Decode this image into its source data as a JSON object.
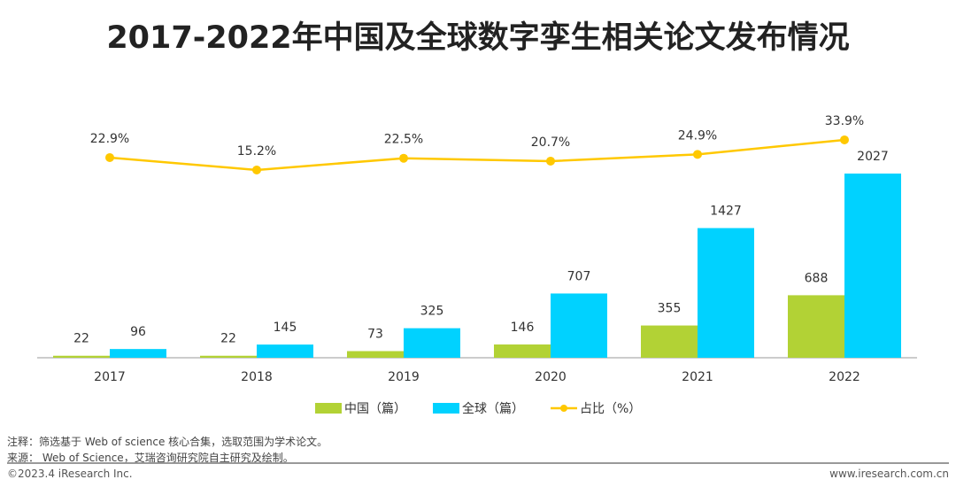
{
  "title": "2017-2022年中国及全球数字孪生相关论文发布情况",
  "chart_data": {
    "type": "bar",
    "title": "2017-2022年中国及全球数字孪生相关论文发布情况",
    "categories": [
      "2017",
      "2018",
      "2019",
      "2020",
      "2021",
      "2022"
    ],
    "series": [
      {
        "name": "中国（篇）",
        "type": "bar",
        "color": "#B2D235",
        "values": [
          22,
          22,
          73,
          146,
          355,
          688
        ]
      },
      {
        "name": "全球（篇）",
        "type": "bar",
        "color": "#00D2FF",
        "values": [
          96,
          145,
          325,
          707,
          1427,
          2027
        ]
      },
      {
        "name": "占比（%）",
        "type": "line",
        "color": "#FFC800",
        "values": [
          22.9,
          15.2,
          22.5,
          20.7,
          24.9,
          33.9
        ],
        "labels": [
          "22.9%",
          "15.2%",
          "22.5%",
          "20.7%",
          "24.9%",
          "33.9%"
        ]
      }
    ],
    "legend": "bottom",
    "grid": false
  },
  "notes": {
    "note": "注释：筛选基于 Web of science 核心合集，选取范围为学术论文。",
    "source": "来源： Web of Science，艾瑞咨询研究院自主研究及绘制。"
  },
  "footer": {
    "copyright": "©2023.4 iResearch Inc.",
    "site": "www.iresearch.com.cn"
  }
}
